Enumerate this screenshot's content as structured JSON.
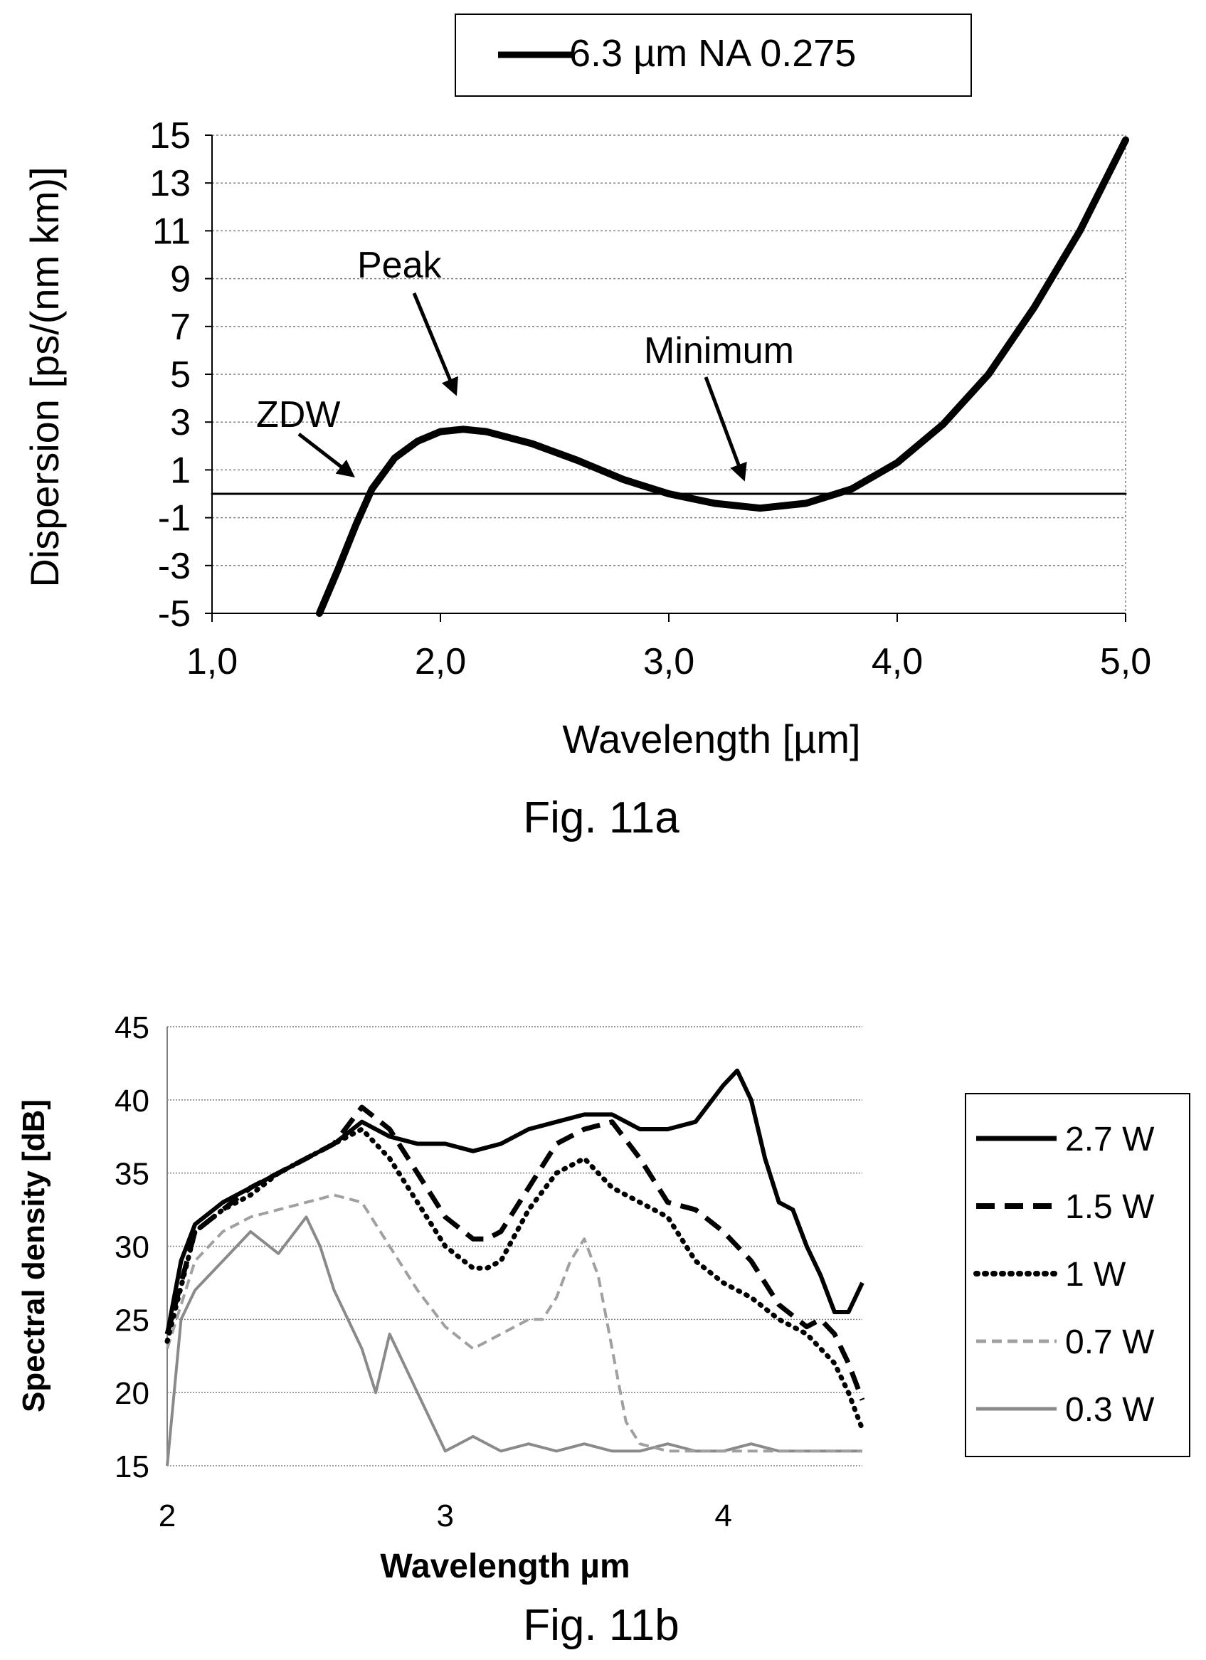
{
  "colors": {
    "ink": "#000000",
    "grid": "#808080",
    "gray_light": "#a0a0a0",
    "gray_mid": "#8a8a8a"
  },
  "chart_data": [
    {
      "type": "line",
      "caption": "Fig. 11a",
      "xlabel": "Wavelength [µm]",
      "ylabel": "Dispersion [ps/(nm km)]",
      "xlim": [
        1.0,
        5.0
      ],
      "ylim": [
        -5,
        15
      ],
      "xticks": [
        "1,0",
        "2,0",
        "3,0",
        "4,0",
        "5,0"
      ],
      "yticks": [
        "-5",
        "-3",
        "-1",
        "1",
        "3",
        "5",
        "7",
        "9",
        "11",
        "13",
        "15"
      ],
      "grid": "horizontal dotted",
      "legend": "top",
      "annotations": [
        {
          "text": "Peak",
          "x": 2.13,
          "y": 2.7
        },
        {
          "text": "Minimum",
          "x": 3.4,
          "y": -0.5
        },
        {
          "text": "ZDW",
          "x": 1.63,
          "y": 0.5
        }
      ],
      "series": [
        {
          "name": "6.3 µm NA 0.275",
          "x": [
            1.47,
            1.55,
            1.63,
            1.7,
            1.8,
            1.9,
            2.0,
            2.1,
            2.2,
            2.4,
            2.6,
            2.8,
            3.0,
            3.2,
            3.4,
            3.6,
            3.8,
            4.0,
            4.2,
            4.4,
            4.6,
            4.8,
            5.0
          ],
          "y": [
            -5.0,
            -3.2,
            -1.3,
            0.2,
            1.5,
            2.2,
            2.6,
            2.7,
            2.6,
            2.1,
            1.4,
            0.6,
            0.0,
            -0.4,
            -0.6,
            -0.4,
            0.2,
            1.3,
            2.9,
            5.0,
            7.8,
            11.0,
            14.8
          ]
        },
        {
          "name": "",
          "x": [
            1.0,
            5.0
          ],
          "y": [
            0.0,
            0.0
          ]
        }
      ]
    },
    {
      "type": "line",
      "caption": "Fig. 11b",
      "xlabel": "Wavelength µm",
      "ylabel": "Spectral density [dB]",
      "xlim": [
        2.0,
        4.5
      ],
      "ylim": [
        15,
        45
      ],
      "xticks": [
        "2",
        "3",
        "4"
      ],
      "yticks": [
        "15",
        "20",
        "25",
        "30",
        "35",
        "40",
        "45"
      ],
      "grid": "horizontal dotted",
      "legend": "right",
      "series": [
        {
          "name": "2.7 W",
          "x": [
            2.0,
            2.05,
            2.1,
            2.2,
            2.3,
            2.4,
            2.5,
            2.6,
            2.7,
            2.8,
            2.9,
            3.0,
            3.1,
            3.2,
            3.3,
            3.4,
            3.5,
            3.6,
            3.7,
            3.8,
            3.9,
            4.0,
            4.05,
            4.1,
            4.15,
            4.2,
            4.25,
            4.3,
            4.35,
            4.4,
            4.45,
            4.5
          ],
          "y": [
            24.0,
            29.0,
            31.5,
            33.0,
            34.0,
            35.0,
            36.0,
            37.0,
            38.5,
            37.5,
            37.0,
            37.0,
            36.5,
            37.0,
            38.0,
            38.5,
            39.0,
            39.0,
            38.0,
            38.0,
            38.5,
            41.0,
            42.0,
            40.0,
            36.0,
            33.0,
            32.5,
            30.0,
            28.0,
            25.5,
            25.5,
            27.5
          ]
        },
        {
          "name": "1.5 W",
          "x": [
            2.0,
            2.1,
            2.2,
            2.3,
            2.4,
            2.5,
            2.6,
            2.7,
            2.8,
            2.9,
            3.0,
            3.1,
            3.15,
            3.2,
            3.3,
            3.4,
            3.5,
            3.6,
            3.7,
            3.8,
            3.9,
            4.0,
            4.1,
            4.2,
            4.3,
            4.35,
            4.4,
            4.45,
            4.5
          ],
          "y": [
            24.0,
            31.0,
            32.5,
            34.0,
            35.0,
            36.0,
            37.0,
            39.5,
            38.0,
            35.0,
            32.0,
            30.5,
            30.5,
            31.0,
            34.0,
            37.0,
            38.0,
            38.5,
            36.0,
            33.0,
            32.5,
            31.0,
            29.0,
            26.0,
            24.5,
            25.0,
            24.0,
            22.0,
            19.5
          ]
        },
        {
          "name": "1 W",
          "x": [
            2.0,
            2.1,
            2.2,
            2.3,
            2.4,
            2.5,
            2.6,
            2.7,
            2.8,
            2.9,
            3.0,
            3.1,
            3.15,
            3.2,
            3.3,
            3.4,
            3.5,
            3.6,
            3.7,
            3.8,
            3.9,
            4.0,
            4.1,
            4.2,
            4.3,
            4.35,
            4.4,
            4.45,
            4.5
          ],
          "y": [
            23.5,
            31.0,
            32.5,
            33.5,
            35.0,
            36.0,
            37.0,
            38.0,
            36.0,
            33.0,
            30.0,
            28.5,
            28.5,
            29.0,
            32.5,
            35.0,
            36.0,
            34.0,
            33.0,
            32.0,
            29.0,
            27.5,
            26.5,
            25.0,
            24.0,
            23.0,
            22.0,
            20.0,
            17.5
          ]
        },
        {
          "name": "0.7 W",
          "x": [
            2.0,
            2.1,
            2.2,
            2.3,
            2.4,
            2.5,
            2.6,
            2.7,
            2.8,
            2.9,
            3.0,
            3.1,
            3.2,
            3.3,
            3.35,
            3.4,
            3.45,
            3.5,
            3.55,
            3.6,
            3.65,
            3.7,
            3.8,
            3.9,
            4.0,
            4.1,
            4.2,
            4.3,
            4.4,
            4.5
          ],
          "y": [
            23.0,
            29.0,
            31.0,
            32.0,
            32.5,
            33.0,
            33.5,
            33.0,
            30.0,
            27.0,
            24.5,
            23.0,
            24.0,
            25.0,
            25.0,
            26.5,
            29.0,
            30.5,
            28.0,
            23.0,
            18.0,
            16.5,
            16.0,
            16.0,
            16.0,
            16.0,
            16.0,
            16.0,
            16.0,
            16.0
          ]
        },
        {
          "name": "0.3 W",
          "x": [
            2.0,
            2.05,
            2.1,
            2.2,
            2.3,
            2.4,
            2.5,
            2.55,
            2.6,
            2.7,
            2.75,
            2.8,
            2.85,
            2.9,
            2.95,
            3.0,
            3.1,
            3.2,
            3.3,
            3.4,
            3.5,
            3.6,
            3.7,
            3.8,
            3.9,
            4.0,
            4.1,
            4.2,
            4.3,
            4.4,
            4.5
          ],
          "y": [
            15.0,
            25.0,
            27.0,
            29.0,
            31.0,
            29.5,
            32.0,
            30.0,
            27.0,
            23.0,
            20.0,
            24.0,
            22.0,
            20.0,
            18.0,
            16.0,
            17.0,
            16.0,
            16.5,
            16.0,
            16.5,
            16.0,
            16.0,
            16.5,
            16.0,
            16.0,
            16.5,
            16.0,
            16.0,
            16.0,
            16.0
          ]
        }
      ]
    }
  ]
}
